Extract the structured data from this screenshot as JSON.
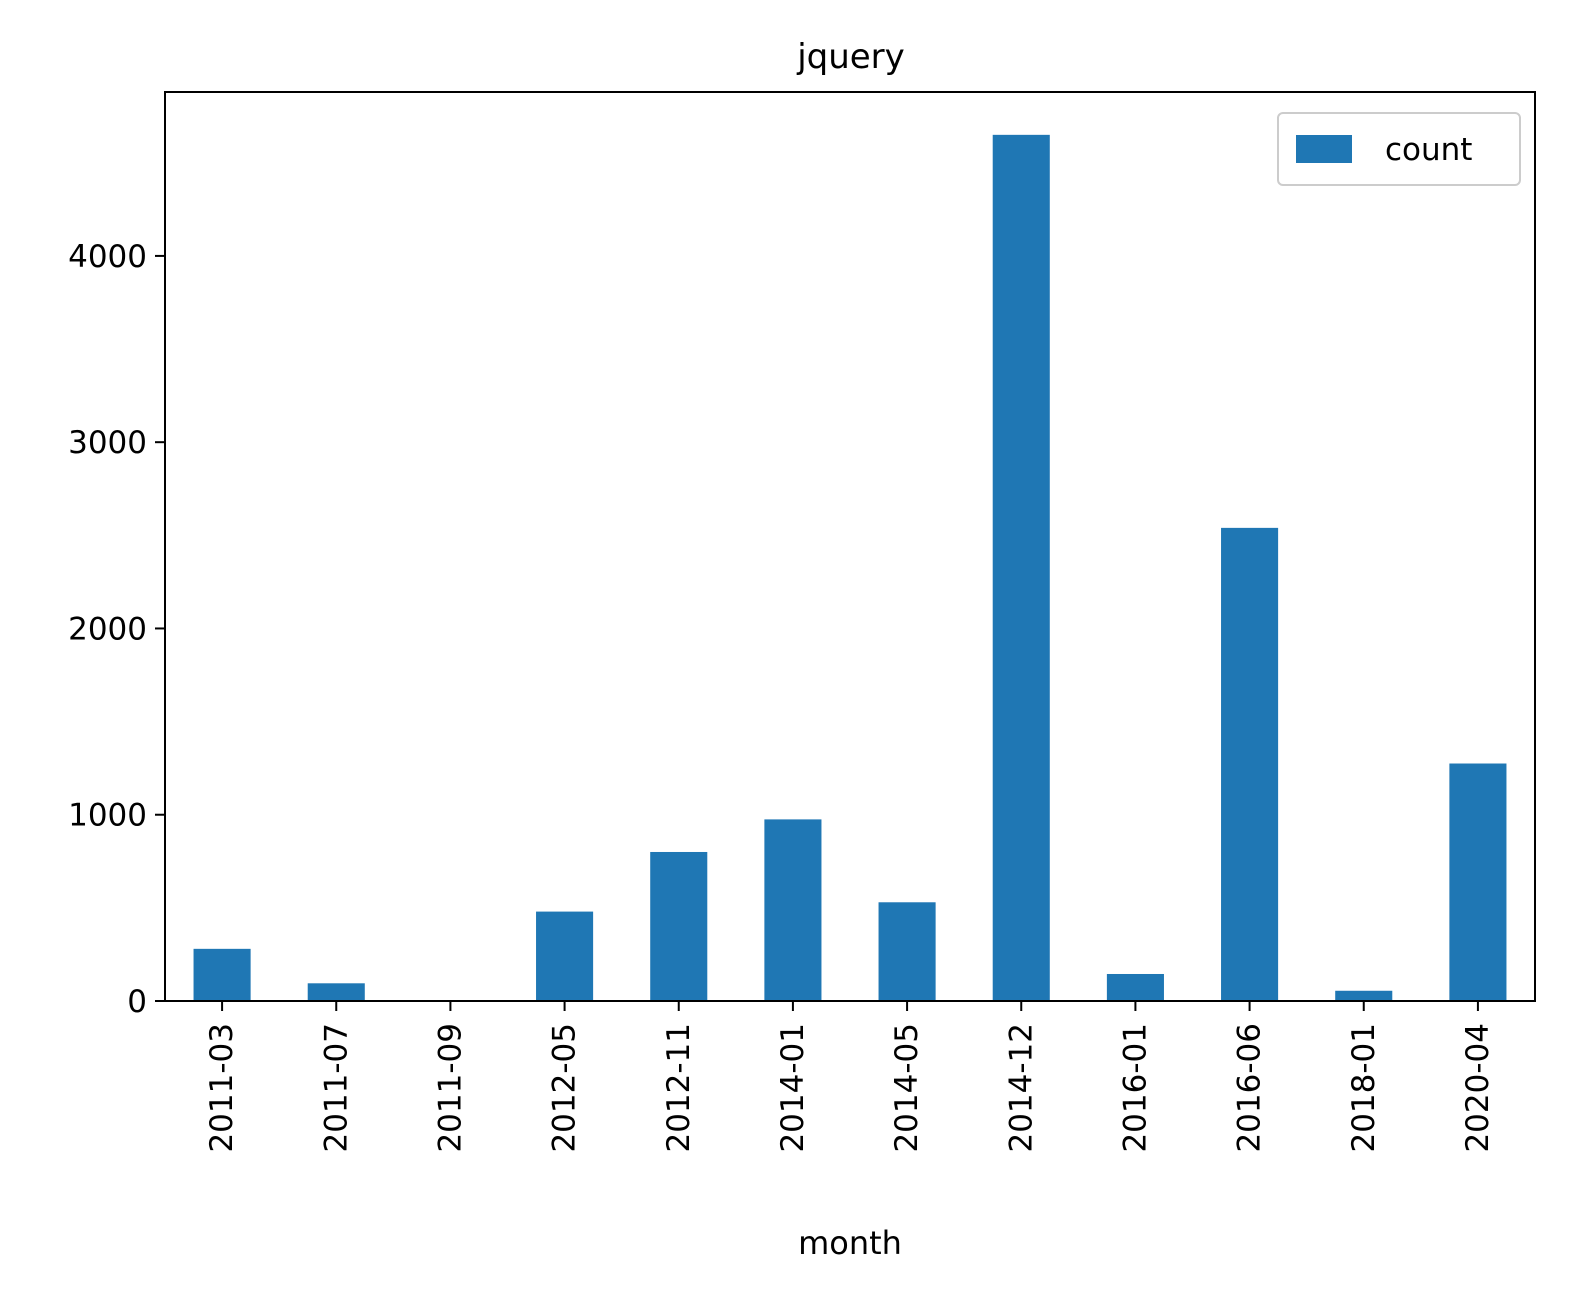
{
  "chart_data": {
    "type": "bar",
    "title": "jquery",
    "xlabel": "month",
    "ylabel": "",
    "categories": [
      "2011-03",
      "2011-07",
      "2011-09",
      "2012-05",
      "2012-11",
      "2014-01",
      "2014-05",
      "2014-12",
      "2016-01",
      "2016-06",
      "2018-01",
      "2020-04"
    ],
    "series": [
      {
        "name": "count",
        "color": "#1f77b4",
        "values": [
          280,
          95,
          2,
          480,
          800,
          975,
          530,
          4650,
          145,
          2540,
          55,
          1275
        ]
      }
    ],
    "ylim": [
      0,
      4880
    ],
    "yticks": [
      0,
      1000,
      2000,
      3000,
      4000
    ],
    "grid": false,
    "legend_position": "top-right"
  }
}
